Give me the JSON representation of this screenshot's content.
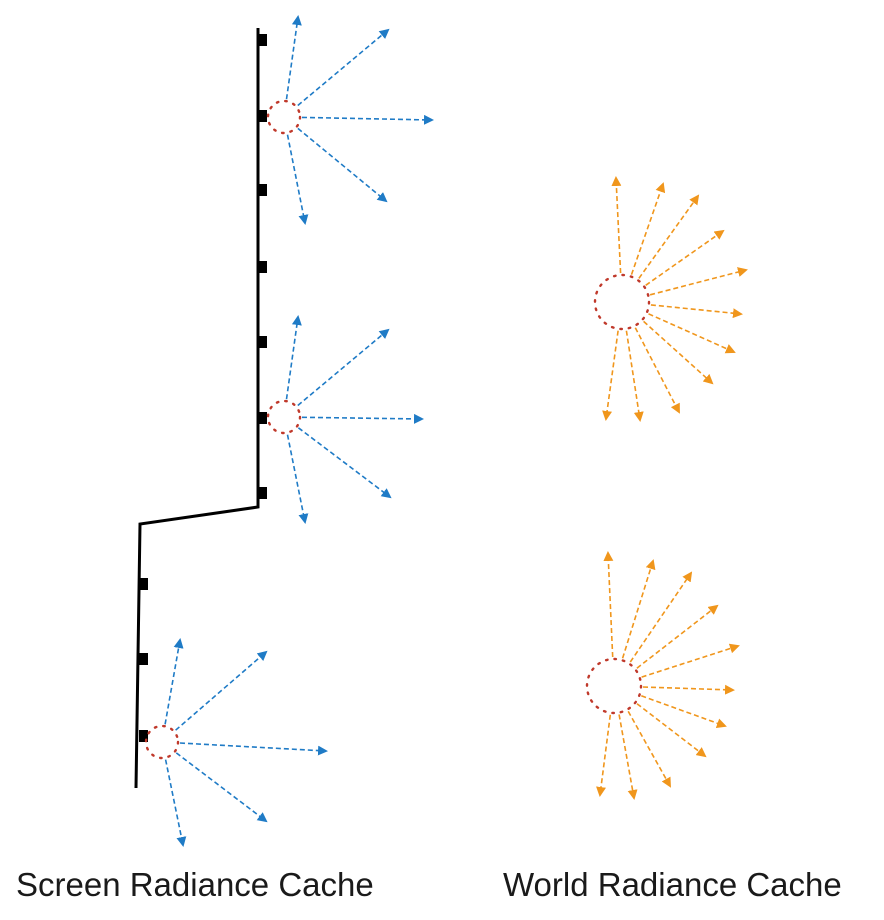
{
  "captions": {
    "screen": "Screen Radiance Cache",
    "world": "World Radiance Cache"
  },
  "colors": {
    "surface": "#000000",
    "screen_rays": "#1f7bc6",
    "world_rays": "#f0961c",
    "probe_ring": "#c0392b"
  },
  "screen_probe_count": 3,
  "world_probe_count": 2
}
